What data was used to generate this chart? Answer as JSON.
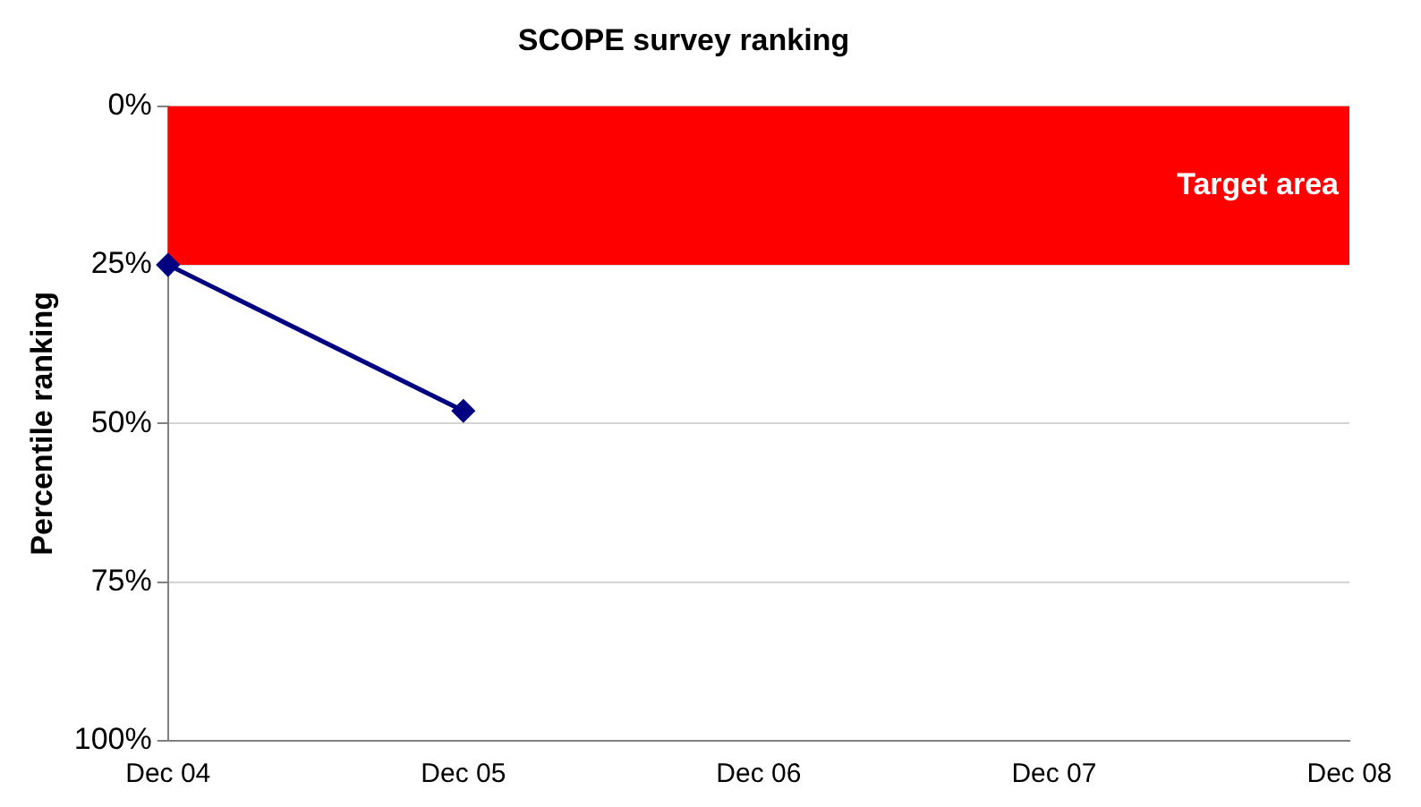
{
  "chart_data": {
    "type": "line",
    "title": "SCOPE survey ranking",
    "ylabel": "Percentile ranking",
    "categories": [
      "Dec 04",
      "Dec 05",
      "Dec 06",
      "Dec 07",
      "Dec 08"
    ],
    "series": [
      {
        "color": "#000080",
        "values": [
          25,
          48,
          null,
          null,
          null
        ]
      }
    ],
    "ylim": [
      100,
      0
    ],
    "yticks": [
      {
        "value": 0,
        "label": "0%"
      },
      {
        "value": 25,
        "label": "25%"
      },
      {
        "value": 50,
        "label": "50%"
      },
      {
        "value": 75,
        "label": "75%"
      },
      {
        "value": 100,
        "label": "100%"
      }
    ],
    "bands": [
      {
        "axis": "y",
        "from": 0,
        "to": 25,
        "label": "Target area",
        "color": "#ff0000"
      }
    ],
    "grid": "y",
    "legend": false,
    "marker": "diamond",
    "line_style": "solid"
  }
}
